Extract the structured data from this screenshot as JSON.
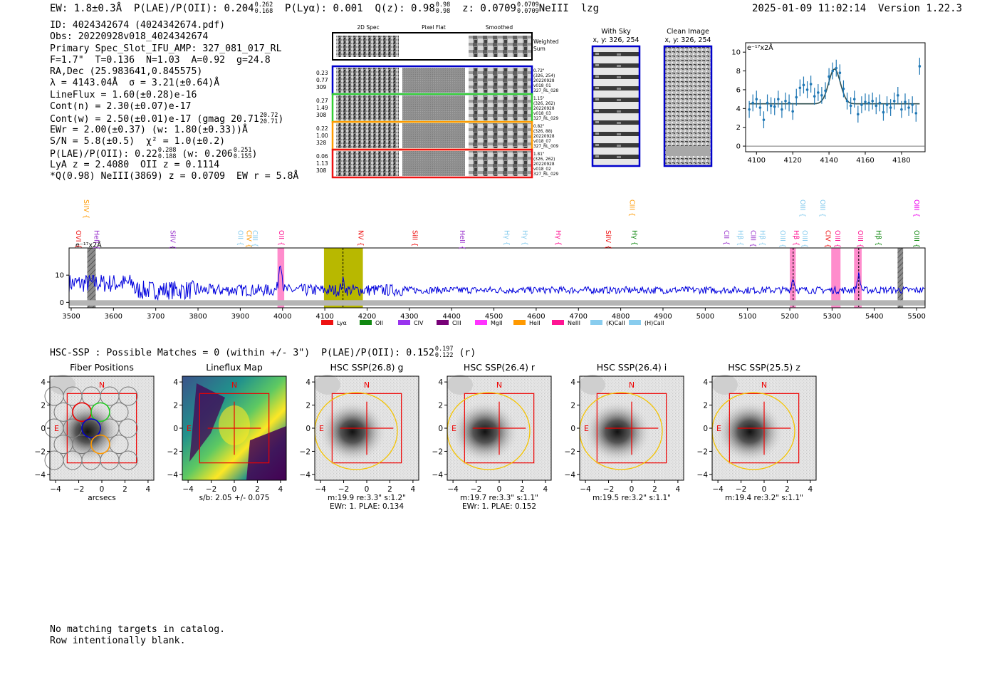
{
  "header": {
    "ew": "EW: 1.8±0.3Å",
    "plae_label": "P(LAE)/P(OII): 0.204",
    "plae_hi": "0.262",
    "plae_lo": "0.168",
    "plya": "P(Lyα): 0.001",
    "qz_label": "Q(z): 0.98",
    "qz_hi": "0.98",
    "qz_lo": "0.98",
    "z_label": "z: 0.0709",
    "z_hi": "0.0709",
    "z_lo": "0.0709",
    "line": "NeIII",
    "flags": "lzg",
    "timestamp": "2025-01-09 11:02:14",
    "version": "Version 1.22.3"
  },
  "info": {
    "id": "ID: 4024342674 (4024342674.pdf)",
    "obs": "Obs: 20220928v018_4024342674",
    "primary": "Primary Spec_Slot_IFU_AMP: 327_081_017_RL",
    "fparams": "F=1.7\"  T=0.136  N=1.03  A=0.92  g=24.8",
    "radec": "RA,Dec (25.983641,0.845575)",
    "lambda": "λ = 4143.04Å  σ = 3.21(±0.64)Å",
    "lineflux": "LineFlux = 1.60(±0.28)e-16",
    "contn": "Cont(n) = 2.30(±0.07)e-17",
    "contw": "Cont(w) = 2.50(±0.01)e-17 (gmag 20.71",
    "gmag_hi": "20.72",
    "gmag_lo": "20.71",
    "ewr": "EWr = 2.00(±0.37) (w: 1.80(±0.33))Å",
    "sn": "S/N = 5.8(±0.5)  χ² = 1.0(±0.2)",
    "plae": "P(LAE)/P(OII): 0.22",
    "plae_hi": "0.288",
    "plae_lo": "0.188",
    "plae_w": "(w: 0.206",
    "plae_w_hi": "0.251",
    "plae_w_lo": "0.155",
    "lya": "LyA z = 2.4080  OII z = 0.1114",
    "q": "*Q(0.98) NeIII(3869) z = 0.0709  EW r = 5.8Å"
  },
  "spec2d": {
    "columns": [
      "2D Spec",
      "Pixel Flat",
      "Smoothed"
    ],
    "sum_label": "Weighted\nSum",
    "rows": [
      {
        "left": [
          "0.23",
          "0.77",
          "309"
        ],
        "right": [
          "0.72\"",
          "(326, 254)",
          "20220928",
          "v018_01",
          "327_RL_028"
        ],
        "color": "#0000cc"
      },
      {
        "left": [
          "0.27",
          "1.49",
          "308"
        ],
        "right": [
          "1.15\"",
          "(326, 262)",
          "20220928",
          "v018_03",
          "327_RL_029"
        ],
        "color": "#33cc33"
      },
      {
        "left": [
          "0.22",
          "1.00",
          "328"
        ],
        "right": [
          "0.82\"",
          "(326, 88)",
          "20220928",
          "v018_07",
          "327_RL_009"
        ],
        "color": "#ff9900"
      },
      {
        "left": [
          "0.06",
          "1.13",
          "308"
        ],
        "right": [
          "1.81\"",
          "(326, 262)",
          "20220928",
          "v018_02",
          "327_RL_029"
        ],
        "color": "#ee1111"
      }
    ]
  },
  "cutouts": {
    "with_sky": "With Sky",
    "with_sky_xy": "x, y: 326, 254",
    "clean": "Clean Image",
    "clean_xy": "x, y: 326, 254"
  },
  "line_fit": {
    "type": "scatter",
    "ylabel": "e⁻¹⁷x2Å",
    "xlim": [
      4094,
      4193
    ],
    "ylim": [
      -0.6,
      11
    ],
    "xticks": [
      4100,
      4120,
      4140,
      4160,
      4180
    ],
    "yticks": [
      0,
      2,
      4,
      6,
      8,
      10
    ],
    "x": [
      4096,
      4098,
      4100,
      4102,
      4104,
      4106,
      4108,
      4110,
      4112,
      4114,
      4116,
      4118,
      4120,
      4122,
      4124,
      4126,
      4128,
      4130,
      4132,
      4134,
      4136,
      4138,
      4140,
      4142,
      4144,
      4146,
      4148,
      4150,
      4152,
      4154,
      4156,
      4158,
      4160,
      4162,
      4164,
      4166,
      4168,
      4170,
      4172,
      4174,
      4176,
      4178,
      4180,
      4182,
      4184,
      4186,
      4188,
      4190
    ],
    "y": [
      3.9,
      4.6,
      5.0,
      4.1,
      2.8,
      4.6,
      4.3,
      4.2,
      5.0,
      3.9,
      4.8,
      4.6,
      3.7,
      5.2,
      6.2,
      6.5,
      6.0,
      6.6,
      5.3,
      5.7,
      5.4,
      5.9,
      7.4,
      8.0,
      8.3,
      7.8,
      6.1,
      4.8,
      4.3,
      5.0,
      3.4,
      4.4,
      4.7,
      4.6,
      4.8,
      4.3,
      4.6,
      3.6,
      4.4,
      4.1,
      4.8,
      5.4,
      3.9,
      4.7,
      4.1,
      4.4,
      3.5,
      8.5
    ],
    "err": [
      0.9,
      0.9,
      0.9,
      0.9,
      0.9,
      0.9,
      0.9,
      0.9,
      0.9,
      0.9,
      0.9,
      0.9,
      0.9,
      0.9,
      0.9,
      0.9,
      0.9,
      0.9,
      0.9,
      0.9,
      0.9,
      0.9,
      0.9,
      0.9,
      0.9,
      0.9,
      0.9,
      0.9,
      0.9,
      0.9,
      0.9,
      0.9,
      0.9,
      0.9,
      0.9,
      0.9,
      0.9,
      0.9,
      0.9,
      0.9,
      0.9,
      0.9,
      0.9,
      0.9,
      0.9,
      0.9,
      0.9,
      0.9
    ],
    "fit": {
      "continuum": 4.5,
      "amplitude": 3.7,
      "center": 4143.04,
      "sigma": 3.21
    }
  },
  "full_spectrum": {
    "type": "line",
    "unit_label": "e⁻¹⁷x2Å",
    "xlim": [
      3495,
      5520
    ],
    "ylim": [
      -2,
      20
    ],
    "xticks": [
      3500,
      3600,
      3700,
      3800,
      3900,
      4000,
      4100,
      4200,
      4300,
      4400,
      4500,
      4600,
      4700,
      4800,
      4900,
      5000,
      5100,
      5200,
      5300,
      5400,
      5500
    ],
    "yticks": [
      0,
      10
    ],
    "peaks": [
      {
        "x": 3995,
        "height": 11
      },
      {
        "x": 4143,
        "height": 3
      },
      {
        "x": 5208,
        "height": 4
      },
      {
        "x": 5363,
        "height": 5.5
      }
    ],
    "continuum": 4.5,
    "bands": [
      {
        "x0": 3538,
        "x1": 3558,
        "color": "#888888",
        "kind": "hatched"
      },
      {
        "x0": 3988,
        "x1": 4004,
        "color": "#ff66bb",
        "kind": "line"
      },
      {
        "x0": 4098,
        "x1": 4190,
        "color": "#b8b800",
        "kind": "current"
      },
      {
        "x0": 5200,
        "x1": 5214,
        "color": "#ff66bb",
        "kind": "line"
      },
      {
        "x0": 5298,
        "x1": 5320,
        "color": "#ff66bb",
        "kind": "line"
      },
      {
        "x0": 5352,
        "x1": 5370,
        "color": "#ff66bb",
        "kind": "line"
      },
      {
        "x0": 5455,
        "x1": 5468,
        "color": "#888888",
        "kind": "hatched"
      }
    ],
    "line_labels": [
      {
        "x": 3512,
        "label": "OVI",
        "color": "#ee1111",
        "row": 1
      },
      {
        "x": 3530,
        "label": "SiIV",
        "color": "#ff9900",
        "row": 0
      },
      {
        "x": 3555,
        "label": "HeII",
        "color": "#9933cc",
        "row": 1
      },
      {
        "x": 3735,
        "label": "SiIV",
        "color": "#9933cc",
        "row": 1
      },
      {
        "x": 3895,
        "label": "OII",
        "color": "#88ccee",
        "row": 1
      },
      {
        "x": 3915,
        "label": "CIV",
        "color": "#ff9900",
        "row": 1
      },
      {
        "x": 3930,
        "label": "CIII",
        "color": "#88ccee",
        "row": 1
      },
      {
        "x": 3992,
        "label": "OII",
        "color": "#ff1493",
        "row": 1
      },
      {
        "x": 4180,
        "label": "NV",
        "color": "#ee1111",
        "row": 1
      },
      {
        "x": 4308,
        "label": "SiII",
        "color": "#ee1111",
        "row": 1
      },
      {
        "x": 4420,
        "label": "HeII",
        "color": "#9933cc",
        "row": 1
      },
      {
        "x": 4525,
        "label": "Hγ",
        "color": "#88ccee",
        "row": 1
      },
      {
        "x": 4568,
        "label": "Hγ",
        "color": "#88ccee",
        "row": 1
      },
      {
        "x": 4647,
        "label": "Hγ",
        "color": "#ff1493",
        "row": 1
      },
      {
        "x": 4765,
        "label": "SiIV",
        "color": "#ee1111",
        "row": 1
      },
      {
        "x": 4822,
        "label": "CIII",
        "color": "#ff9900",
        "row": 0
      },
      {
        "x": 4828,
        "label": "Hγ",
        "color": "#118811",
        "row": 1
      },
      {
        "x": 5045,
        "label": "CII",
        "color": "#9933cc",
        "row": 1
      },
      {
        "x": 5078,
        "label": "Hβ",
        "color": "#88ccee",
        "row": 1
      },
      {
        "x": 5108,
        "label": "CIII",
        "color": "#9933cc",
        "row": 1
      },
      {
        "x": 5130,
        "label": "Hβ",
        "color": "#88ccee",
        "row": 1
      },
      {
        "x": 5178,
        "label": "OIII",
        "color": "#88ccee",
        "row": 1
      },
      {
        "x": 5210,
        "label": "Hβ",
        "color": "#ff1493",
        "row": 1
      },
      {
        "x": 5225,
        "label": "OIII",
        "color": "#88ccee",
        "row": 0
      },
      {
        "x": 5230,
        "label": "OIII",
        "color": "#88ccee",
        "row": 1
      },
      {
        "x": 5272,
        "label": "OIII",
        "color": "#88ccee",
        "row": 0
      },
      {
        "x": 5285,
        "label": "CIV",
        "color": "#ee1111",
        "row": 1
      },
      {
        "x": 5308,
        "label": "OIII",
        "color": "#ff1493",
        "row": 1
      },
      {
        "x": 5362,
        "label": "OIII",
        "color": "#ff1493",
        "row": 1
      },
      {
        "x": 5405,
        "label": "Hβ",
        "color": "#118811",
        "row": 1
      },
      {
        "x": 5495,
        "label": "OIII",
        "color": "#118811",
        "row": 1
      },
      {
        "x": 5495,
        "label": "OIII",
        "color": "#ee00ee",
        "row": 0
      }
    ],
    "legend": [
      {
        "label": "Lyα",
        "color": "#ee1111"
      },
      {
        "label": "OII",
        "color": "#118811"
      },
      {
        "label": "CIV",
        "color": "#9933ee"
      },
      {
        "label": "CIII",
        "color": "#770077"
      },
      {
        "label": "MgII",
        "color": "#ff33ff"
      },
      {
        "label": "HeII",
        "color": "#ff9900"
      },
      {
        "label": "NeIII",
        "color": "#ff1493"
      },
      {
        "label": "(K)CaII",
        "color": "#88ccee"
      },
      {
        "label": "(H)CaII",
        "color": "#88ccee"
      }
    ]
  },
  "hsc": {
    "summary": "HSC-SSP : Possible Matches = 0 (within +/- 3\")  P(LAE)/P(OII): 0.152",
    "summary_hi": "0.197",
    "summary_lo": "0.122",
    "summary_band": "(r)",
    "ticks": [
      "4",
      "2",
      "0",
      "−2",
      "−4"
    ],
    "xticks": [
      "−4",
      "−2",
      "0",
      "2",
      "4"
    ],
    "north": "N",
    "east": "E",
    "panels": [
      {
        "title": "Fiber Positions",
        "caption1": "arcsecs",
        "caption2": ""
      },
      {
        "title": "Lineflux Map",
        "caption1": "s/b: 2.05 +/- 0.075",
        "caption2": ""
      },
      {
        "title": "HSC SSP(26.8) g",
        "caption1": "m:19.9  re:3.3\"  s:1.2\"",
        "caption2": "EWr: 1. PLAE: 0.134"
      },
      {
        "title": "HSC SSP(26.4) r",
        "caption1": "m:19.7  re:3.3\"  s:1.1\"",
        "caption2": "EWr: 1. PLAE: 0.152"
      },
      {
        "title": "HSC SSP(26.4) i",
        "caption1": "m:19.5  re:3.2\"  s:1.1\"",
        "caption2": ""
      },
      {
        "title": "HSC SSP(25.5) z",
        "caption1": "m:19.4  re:3.2\"  s:1.1\"",
        "caption2": ""
      }
    ]
  },
  "footer": {
    "line1": "No matching targets in catalog.",
    "line2": "Row intentionally blank."
  }
}
